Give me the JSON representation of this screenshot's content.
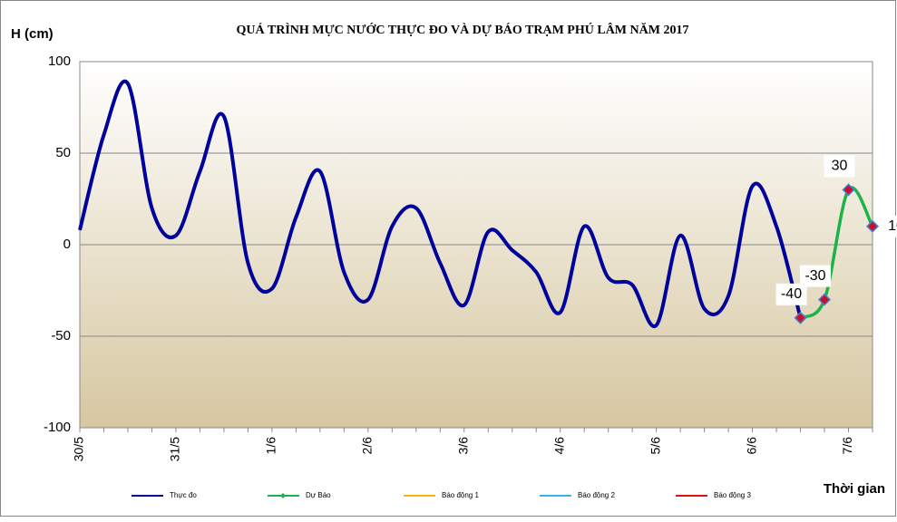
{
  "chart_data": {
    "type": "line",
    "title": "QUÁ TRÌNH MỰC NƯỚC THỰC ĐO VÀ DỰ BÁO TRẠM  PHÚ LÂM NĂM 2017",
    "y_label": "H (cm)",
    "x_label": "Thời gian",
    "categories": [
      "30/5",
      null,
      null,
      null,
      "31/5",
      null,
      null,
      null,
      "1/6",
      null,
      null,
      null,
      "2/6",
      null,
      null,
      null,
      "3/6",
      null,
      null,
      null,
      "4/6",
      null,
      null,
      null,
      "5/6",
      null,
      null,
      null,
      "6/6",
      null,
      null,
      null,
      "7/6",
      null
    ],
    "series": [
      {
        "name": "Thực đo",
        "color": "#00009c",
        "values": [
          8,
          60,
          88,
          20,
          5,
          40,
          70,
          -10,
          -24,
          15,
          40,
          -15,
          -30,
          10,
          20,
          -10,
          -33,
          7,
          -3,
          -15,
          -37,
          10,
          -18,
          -22,
          -44,
          5,
          -35,
          -28,
          32,
          10,
          -40,
          null,
          null,
          null
        ]
      },
      {
        "name": "Dự Báo",
        "color": "#1fb24a",
        "values": [
          null,
          null,
          null,
          null,
          null,
          null,
          null,
          null,
          null,
          null,
          null,
          null,
          null,
          null,
          null,
          null,
          null,
          null,
          null,
          null,
          null,
          null,
          null,
          null,
          null,
          null,
          null,
          null,
          null,
          null,
          -40,
          -30,
          30,
          10
        ]
      },
      {
        "name": "Báo động 1",
        "color": "#f5b800",
        "values": [
          null,
          null,
          null,
          null,
          null,
          null,
          null,
          null,
          null,
          null,
          null,
          null,
          null,
          null,
          null,
          null,
          null,
          null,
          null,
          null,
          null,
          null,
          null,
          null,
          null,
          null,
          null,
          null,
          null,
          null,
          null,
          null,
          null,
          null
        ]
      },
      {
        "name": "Báo động 2",
        "color": "#33b5e8",
        "values": [
          null,
          null,
          null,
          null,
          null,
          null,
          null,
          null,
          null,
          null,
          null,
          null,
          null,
          null,
          null,
          null,
          null,
          null,
          null,
          null,
          null,
          null,
          null,
          null,
          null,
          null,
          null,
          null,
          null,
          null,
          null,
          null,
          null,
          null
        ]
      },
      {
        "name": "Báo động 3",
        "color": "#e01010",
        "values": [
          null,
          null,
          null,
          null,
          null,
          null,
          null,
          null,
          null,
          null,
          null,
          null,
          null,
          null,
          null,
          null,
          null,
          null,
          null,
          null,
          null,
          null,
          null,
          null,
          null,
          null,
          null,
          null,
          null,
          null,
          null,
          null,
          null,
          null
        ]
      }
    ],
    "ylim": [
      -100,
      100
    ],
    "yticks": [
      -100,
      -50,
      0,
      50,
      100
    ],
    "grid": true
  }
}
